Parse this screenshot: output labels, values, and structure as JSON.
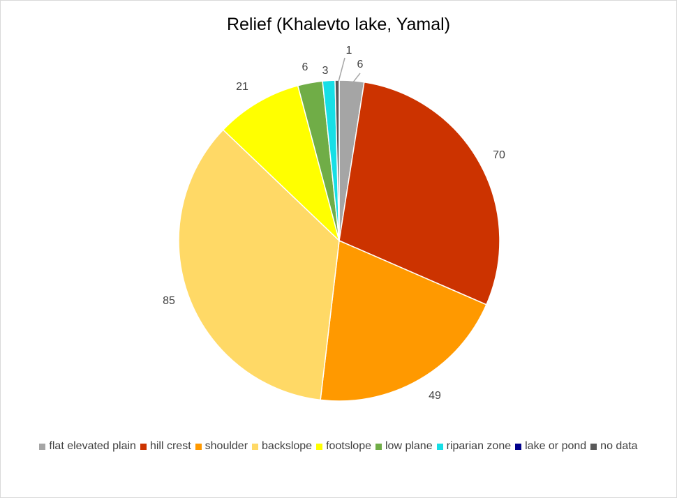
{
  "chart_data": {
    "type": "pie",
    "title": "Relief (Khalevto lake, Yamal)",
    "legend_position": "bottom",
    "slices": [
      {
        "name": "flat elevated plain",
        "value": 6,
        "color": "#a5a5a5",
        "label": "6"
      },
      {
        "name": "hill crest",
        "value": 70,
        "color": "#cc3300",
        "label": "70"
      },
      {
        "name": "shoulder",
        "value": 49,
        "color": "#ff9900",
        "label": "49"
      },
      {
        "name": "backslope",
        "value": 85,
        "color": "#ffd966",
        "label": "85"
      },
      {
        "name": "footslope",
        "value": 21,
        "color": "#ffff00",
        "label": "21"
      },
      {
        "name": "low plane",
        "value": 6,
        "color": "#70ad47",
        "label": "6"
      },
      {
        "name": "riparian zone",
        "value": 3,
        "color": "#17dfe6",
        "label": "3"
      },
      {
        "name": "lake or pond",
        "value": 0,
        "color": "#00008b",
        "label": ""
      },
      {
        "name": "no data",
        "value": 1,
        "color": "#595959",
        "label": "1"
      }
    ]
  }
}
